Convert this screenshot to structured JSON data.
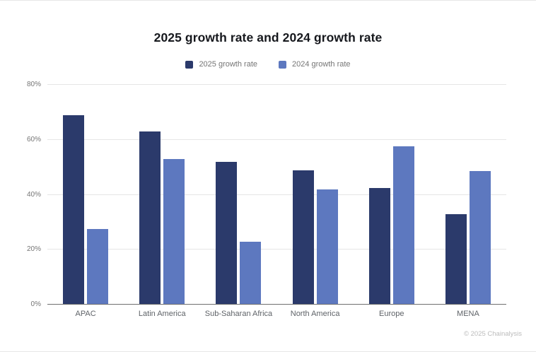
{
  "page": {
    "title": "2025 growth rate and 2024 growth rate",
    "footer": "© 2025 Chainalysis"
  },
  "colors": {
    "series_2025": "#2b3a6b",
    "series_2024": "#5d78bf",
    "gridline": "#e6e6e6",
    "axis_baseline": "#6f6f6f",
    "tick_label": "#757575",
    "category_label": "#5f6368",
    "legend_text": "#757575",
    "title_text": "#16181d",
    "footer_text": "#bcbcbc"
  },
  "chart_data": {
    "type": "bar",
    "title": "2025 growth rate and 2024 growth rate",
    "categories": [
      "APAC",
      "Latin America",
      "Sub-Saharan Africa",
      "North America",
      "Europe",
      "MENA"
    ],
    "series": [
      {
        "name": "2025 growth rate",
        "color": "#2b3a6b",
        "values": [
          69,
          63,
          52,
          49,
          42.5,
          33
        ]
      },
      {
        "name": "2024 growth rate",
        "color": "#5d78bf",
        "values": [
          27.5,
          53,
          23,
          42,
          57.5,
          48.5
        ]
      }
    ],
    "xlabel": "",
    "ylabel": "",
    "ylim": [
      0,
      80
    ],
    "yticks": [
      "0%",
      "20%",
      "40%",
      "60%",
      "80%"
    ],
    "ytick_values": [
      0,
      20,
      40,
      60,
      80
    ],
    "grid": true,
    "legend_position": "top"
  }
}
